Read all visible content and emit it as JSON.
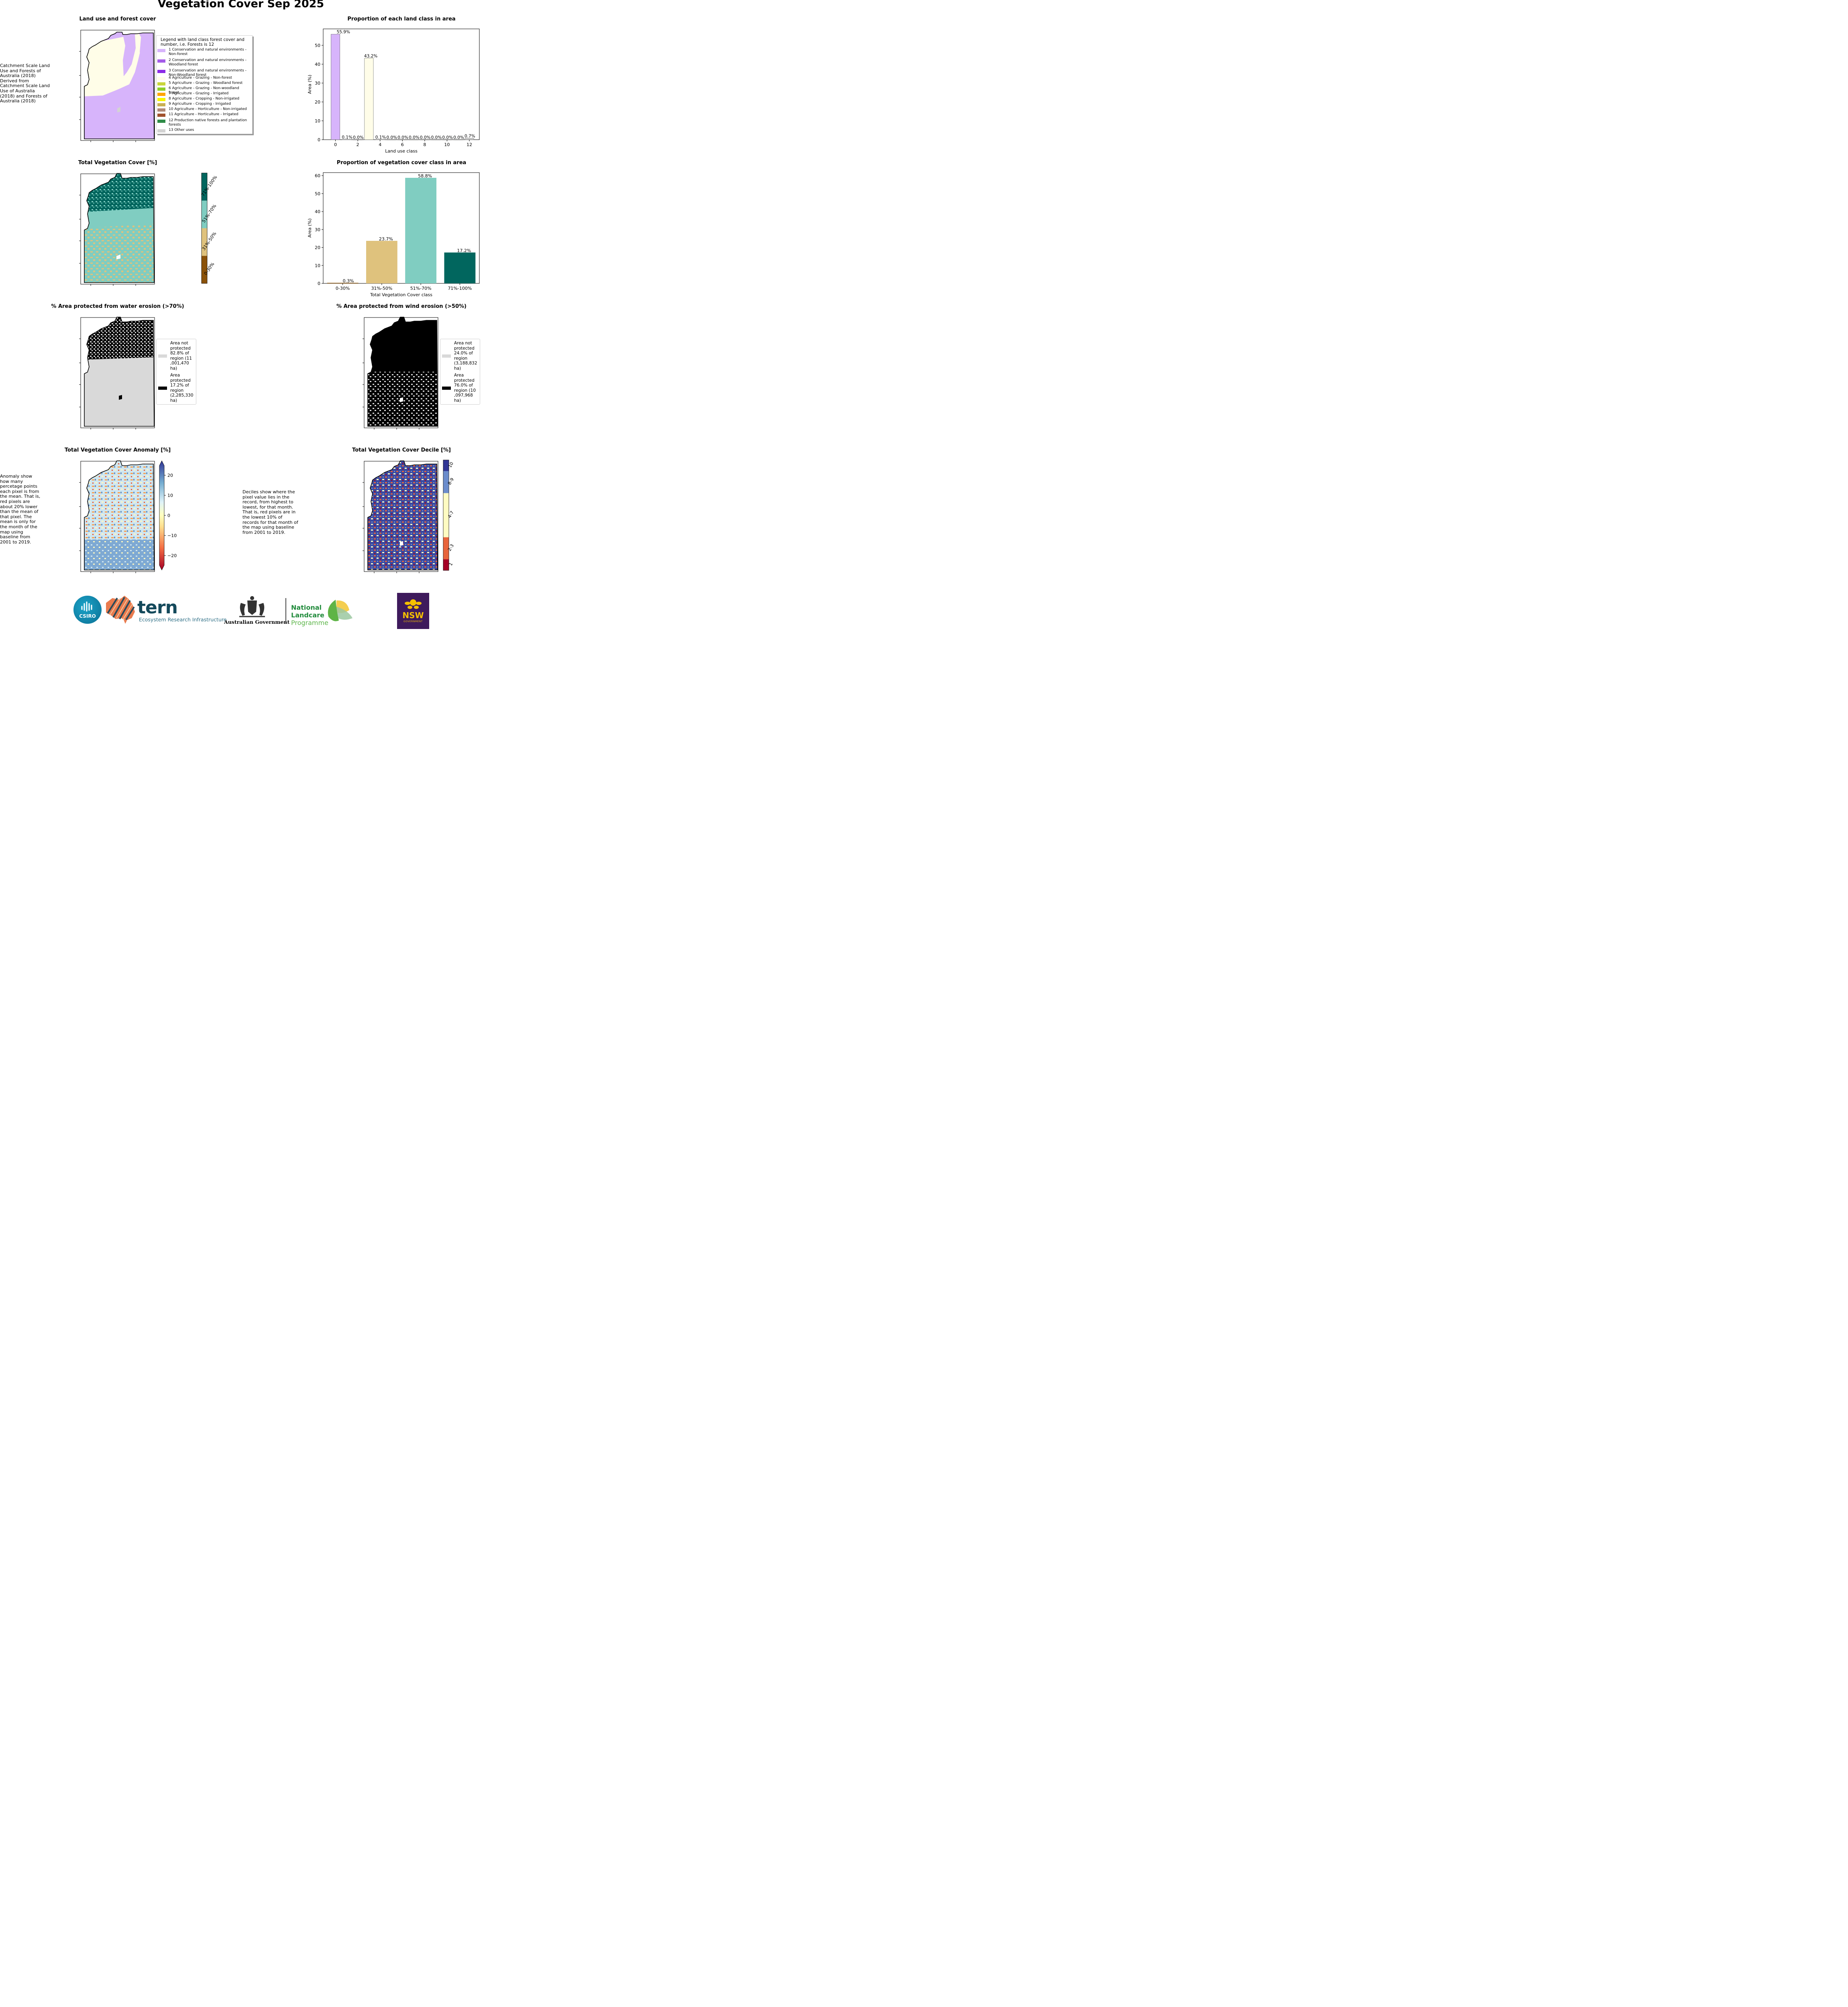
{
  "title": "Vegetation Cover Sep 2025",
  "panels": {
    "landuse_map": {
      "title": "Land use and forest cover",
      "side_note": " Catchment Scale Land Use and Forests of Australia (2018) Derived from Catchment Scale Land Use of Australia (2018) and Forests of Australia (2018)",
      "legend_title": "Legend with land class forest cover and number, i.e. Forests is 12",
      "legend": [
        {
          "label": "1 Conservation and natural environments - Non-forest",
          "color": "#d7b4fb"
        },
        {
          "label": "2 Conservation and natural environments - Woodland forest",
          "color": "#a45ce8"
        },
        {
          "label": "3 Conservation and natural environments - Non-Woodland forest",
          "color": "#8b2be6"
        },
        {
          "label": "4 Agriculture - Grazing - Non-forest",
          "color": "#fffde8"
        },
        {
          "label": "5 Agriculture - Grazing - Woodland forest",
          "color": "#c8d53a"
        },
        {
          "label": "6 Agriculture - Grazing - Non-woodland forest",
          "color": "#8fce2a"
        },
        {
          "label": "7 Agriculture - Grazing - Irrigated",
          "color": "#ffa500"
        },
        {
          "label": "8 Agriculture - Cropping - Non-irrigated",
          "color": "#f5f500"
        },
        {
          "label": "9 Agriculture - Cropping - Irrigated",
          "color": "#c9b052"
        },
        {
          "label": "10 Agriculture - Horticulture - Non-irrigated",
          "color": "#b08a78"
        },
        {
          "label": "11 Agriculture - Horticulture - Irrigated",
          "color": "#a0522d"
        },
        {
          "label": "12 Production native forests and plantation forests",
          "color": "#2e8b47"
        },
        {
          "label": "13 Other uses",
          "color": "#d3d3d3"
        }
      ]
    },
    "landclass_chart": {
      "title": "Proportion of each land class in area"
    },
    "tvc_map": {
      "title": "Total Vegetation Cover [%]",
      "colorbar": [
        {
          "label": "0-30%",
          "color": "#8b5209"
        },
        {
          "label": "31%-50%",
          "color": "#dfc27d"
        },
        {
          "label": "51%-70%",
          "color": "#80cdc1"
        },
        {
          "label": "71%-100%",
          "color": "#01665e"
        }
      ]
    },
    "tvc_chart": {
      "title": "Proportion of vegetation cover class in area"
    },
    "water_map": {
      "title": "% Area protected from water erosion (>70%)",
      "legend": [
        {
          "label": "Area not protected 82.8% of region (11 ,001,470 ha)",
          "lines": [
            "Area not",
            "protected",
            "82.8% of",
            "region (11",
            ",001,470",
            "ha)"
          ],
          "color": "#d9d9d9"
        },
        {
          "label": "Area protected 17.2% of region (2,285,330 ha)",
          "lines": [
            "Area",
            "protected",
            "17.2% of",
            "region",
            "(2,285,330",
            "ha)"
          ],
          "color": "#000000"
        }
      ]
    },
    "wind_map": {
      "title": "% Area protected from wind erosion (>50%)",
      "legend": [
        {
          "label": "Area not protected 24.0% of region (3,188,832 ha)",
          "lines": [
            "Area not",
            "protected",
            "24.0% of",
            "region",
            "(3,188,832",
            "ha)"
          ],
          "color": "#d9d9d9"
        },
        {
          "label": "Area protected 76.0% of region (10 ,097,968 ha)",
          "lines": [
            "Area",
            "protected",
            "76.0% of",
            "region (10",
            ",097,968",
            "ha)"
          ],
          "color": "#000000"
        }
      ]
    },
    "anomaly_map": {
      "title": "Total Vegetation Cover Anomaly [%]",
      "side_note": "Anomaly show how many percetage points each pixel is from the mean. That is, red pixels are about 20% lower than the mean of that pixel. The mean is only for the month of the map using baseline from 2001 to 2019.",
      "colorbar_ticks": [
        "20",
        "10",
        "0",
        "−10",
        "−20"
      ]
    },
    "decile_map": {
      "title": "Total Vegetation Cover Decile [%]",
      "side_note": "Deciles show where the pixel value lies in the record, from highest to lowest, for that month. That is, red pixels are in the lowest 10% of records for that month of the map using baseline from 2001 to 2019.",
      "colorbar": [
        {
          "label": "1",
          "color": "#a50026"
        },
        {
          "label": "2-3",
          "color": "#e8643c"
        },
        {
          "label": "4-7",
          "color": "#fffbc2"
        },
        {
          "label": "8-9",
          "color": "#6b8ccc"
        },
        {
          "label": "10",
          "color": "#313695"
        }
      ]
    }
  },
  "logos": {
    "csiro": "CSIRO",
    "tern": "tern",
    "tern_sub": "Ecosystem Research Infrastructure",
    "aus_gov": "Australian Government",
    "nlp_line1": "National",
    "nlp_line2": "Landcare",
    "nlp_line3": "Programme",
    "nsw": "NSW",
    "nsw_sub": "GOVERNMENT"
  },
  "colors": {
    "purple_light": "#d7b4fb",
    "cream": "#fffde8",
    "veg_brown": "#8b5209",
    "veg_tan": "#dfc27d",
    "veg_teal": "#80cdc1",
    "veg_dark": "#01665e"
  },
  "chart_data": [
    {
      "type": "bar",
      "title": "Proportion of each land class in area",
      "xlabel": "Land use class",
      "ylabel": "Area (%)",
      "x": [
        0,
        1,
        2,
        3,
        4,
        5,
        6,
        7,
        8,
        9,
        10,
        11,
        12
      ],
      "values": [
        55.9,
        0.1,
        0.0,
        43.2,
        0.1,
        0.0,
        0.0,
        0.0,
        0.0,
        0.0,
        0.0,
        0.0,
        0.7
      ],
      "labels": [
        "55.9%",
        "0.1%",
        "0.0%",
        "43.2%",
        "0.1%",
        "0.0%",
        "0.0%",
        "0.0%",
        "0.0%",
        "0.0%",
        "0.0%",
        "0.0%",
        "0.7%"
      ],
      "xticks": [
        0,
        2,
        4,
        6,
        8,
        10,
        12
      ],
      "yticks": [
        0,
        10,
        20,
        30,
        40,
        50
      ],
      "xlim": [
        -1.1,
        12.9
      ],
      "ylim": [
        0,
        58.7
      ]
    },
    {
      "type": "bar",
      "title": "Proportion of vegetation cover class in area",
      "xlabel": "Total Vegetation Cover class",
      "ylabel": "Area (%)",
      "categories": [
        "0-30%",
        "31%-50%",
        "51%-70%",
        "71%-100%"
      ],
      "values": [
        0.3,
        23.7,
        58.8,
        17.2
      ],
      "labels": [
        "0.3%",
        "23.7%",
        "58.8%",
        "17.2%"
      ],
      "yticks": [
        0,
        10,
        20,
        30,
        40,
        50,
        60
      ],
      "ylim": [
        0,
        61.7
      ]
    }
  ]
}
